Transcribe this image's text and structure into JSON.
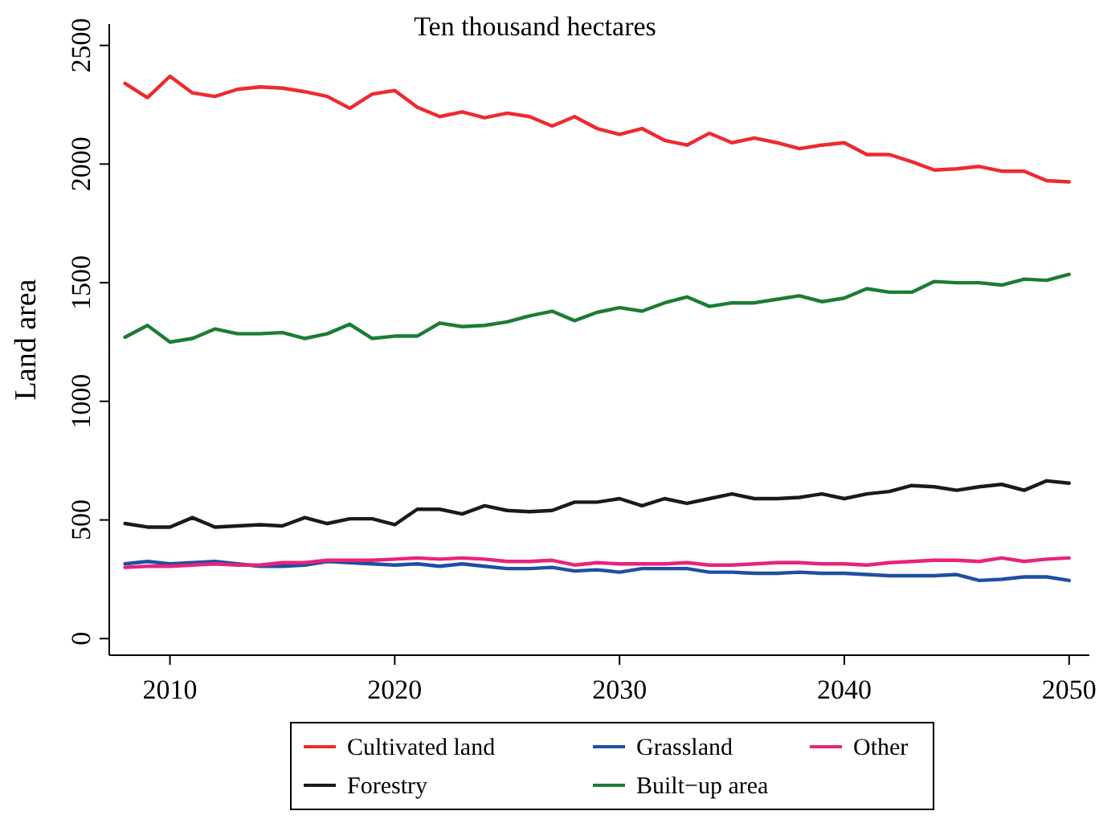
{
  "chart_data": {
    "type": "line",
    "title": "Ten thousand hectares",
    "ylabel": "Land area",
    "x": [
      2008,
      2009,
      2010,
      2011,
      2012,
      2013,
      2014,
      2015,
      2016,
      2017,
      2018,
      2019,
      2020,
      2021,
      2022,
      2023,
      2024,
      2025,
      2026,
      2027,
      2028,
      2029,
      2030,
      2031,
      2032,
      2033,
      2034,
      2035,
      2036,
      2037,
      2038,
      2039,
      2040,
      2041,
      2042,
      2043,
      2044,
      2045,
      2046,
      2047,
      2048,
      2049,
      2050
    ],
    "xlim": [
      2007.3,
      2050.9
    ],
    "xticks": [
      2010,
      2020,
      2030,
      2040,
      2050
    ],
    "ylim": [
      -70,
      2590
    ],
    "yticks": [
      0,
      500,
      1000,
      1500,
      2000,
      2500
    ],
    "grid": false,
    "legend": "bottom",
    "line_style": "solid",
    "series": [
      {
        "name": "Cultivated land",
        "color": "#ee2a2f",
        "values": [
          2340,
          2280,
          2370,
          2300,
          2285,
          2315,
          2325,
          2320,
          2305,
          2285,
          2235,
          2295,
          2310,
          2240,
          2200,
          2220,
          2195,
          2215,
          2200,
          2160,
          2200,
          2150,
          2125,
          2150,
          2100,
          2080,
          2130,
          2090,
          2110,
          2090,
          2065,
          2080,
          2090,
          2040,
          2040,
          2010,
          1975,
          1980,
          1990,
          1970,
          1970,
          1930,
          1925
        ]
      },
      {
        "name": "Forestry",
        "color": "#1a1a1a",
        "values": [
          485,
          470,
          470,
          510,
          470,
          475,
          480,
          475,
          510,
          485,
          505,
          505,
          480,
          545,
          545,
          525,
          560,
          540,
          535,
          540,
          575,
          575,
          590,
          560,
          590,
          570,
          590,
          610,
          590,
          590,
          595,
          610,
          590,
          610,
          620,
          645,
          640,
          625,
          640,
          650,
          625,
          665,
          655
        ]
      },
      {
        "name": "Grassland",
        "color": "#1f4fa3",
        "values": [
          315,
          325,
          315,
          320,
          325,
          315,
          305,
          305,
          310,
          325,
          320,
          315,
          310,
          315,
          305,
          315,
          305,
          295,
          295,
          300,
          285,
          290,
          280,
          295,
          295,
          295,
          280,
          280,
          275,
          275,
          280,
          275,
          275,
          270,
          265,
          265,
          265,
          270,
          245,
          250,
          260,
          260,
          245
        ]
      },
      {
        "name": "Built−up area",
        "color": "#1b7d34",
        "values": [
          1270,
          1320,
          1250,
          1265,
          1305,
          1285,
          1285,
          1290,
          1265,
          1285,
          1325,
          1265,
          1275,
          1275,
          1330,
          1315,
          1320,
          1335,
          1360,
          1380,
          1340,
          1375,
          1395,
          1380,
          1415,
          1440,
          1400,
          1415,
          1415,
          1430,
          1445,
          1420,
          1435,
          1475,
          1460,
          1460,
          1505,
          1500,
          1500,
          1490,
          1515,
          1510,
          1535
        ]
      },
      {
        "name": "Other",
        "color": "#e8237a",
        "values": [
          300,
          305,
          305,
          310,
          315,
          310,
          310,
          320,
          320,
          330,
          330,
          330,
          335,
          340,
          335,
          340,
          335,
          325,
          325,
          330,
          310,
          320,
          315,
          315,
          315,
          320,
          310,
          310,
          315,
          320,
          320,
          315,
          315,
          310,
          320,
          325,
          330,
          330,
          325,
          340,
          325,
          335,
          340
        ]
      }
    ]
  }
}
